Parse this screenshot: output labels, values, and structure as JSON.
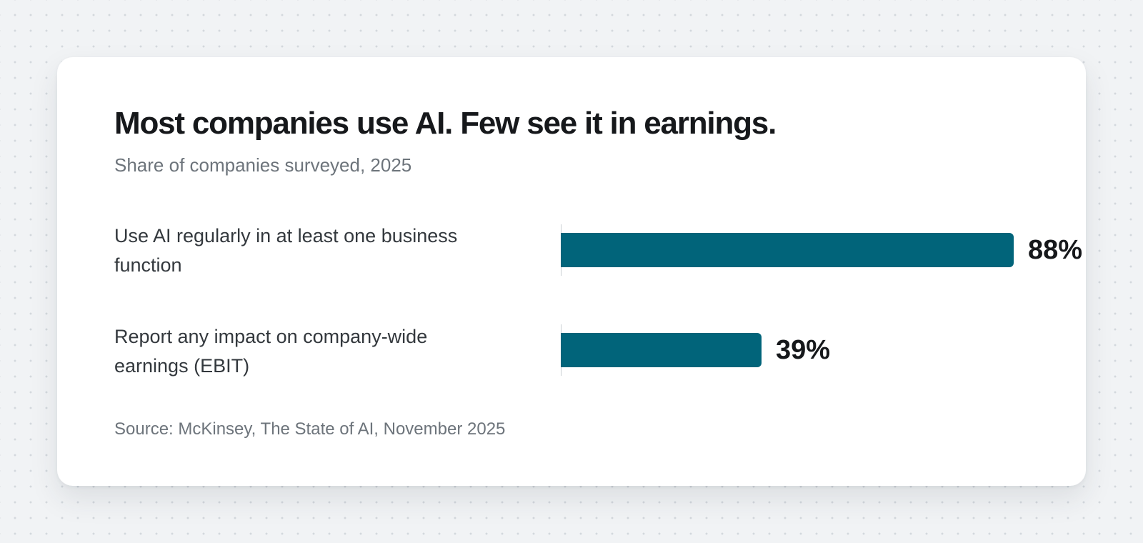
{
  "chart_data": {
    "type": "bar",
    "orientation": "horizontal",
    "title": "Most companies use AI. Few see it in earnings.",
    "subtitle": "Share of companies surveyed, 2025",
    "categories": [
      "Use AI regularly in at least one business function",
      "Report any impact on company-wide earnings (EBIT)"
    ],
    "values": [
      88,
      39
    ],
    "value_labels": [
      "88%",
      "39%"
    ],
    "unit": "%",
    "xlim": [
      0,
      100
    ],
    "grid": false,
    "legend": "none",
    "source": "Source: McKinsey, The State of AI, November 2025",
    "colors": {
      "bar": "#01647a",
      "title": "#16181b",
      "muted_text": "#6d747b",
      "card_background": "#ffffff",
      "page_background": "#f1f3f5"
    }
  }
}
